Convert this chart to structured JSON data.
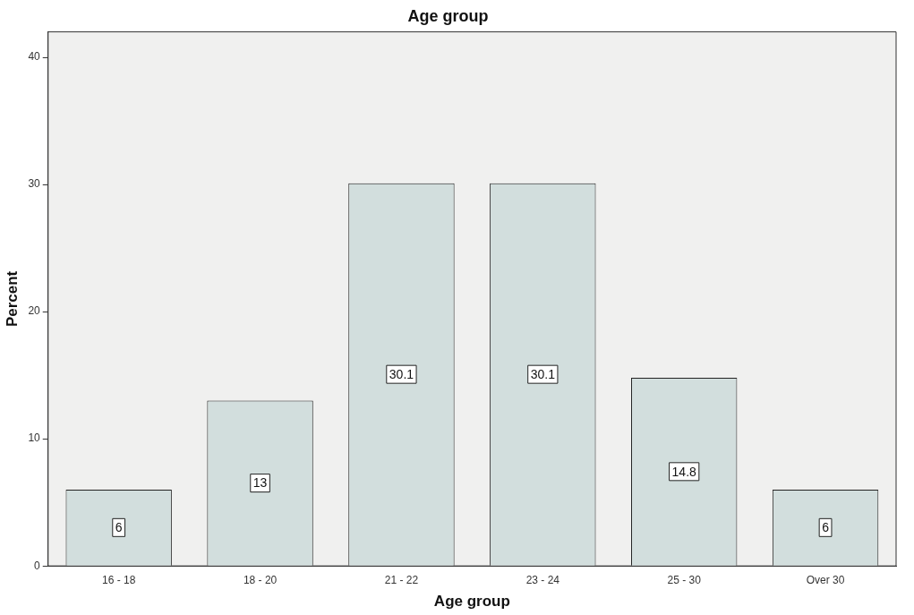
{
  "chart_data": {
    "type": "bar",
    "title": "Age group",
    "xlabel": "Age group",
    "ylabel": "Percent",
    "categories": [
      "16 - 18",
      "18 - 20",
      "21 - 22",
      "23 - 24",
      "25 - 30",
      "Over 30"
    ],
    "values": [
      6,
      13,
      30.1,
      30.1,
      14.8,
      6
    ],
    "color": "#d2dedd",
    "ylim": [
      0,
      42
    ],
    "yticks": [
      0,
      10,
      20,
      30,
      40
    ],
    "grid": false,
    "legend": false,
    "data_labels": true
  }
}
